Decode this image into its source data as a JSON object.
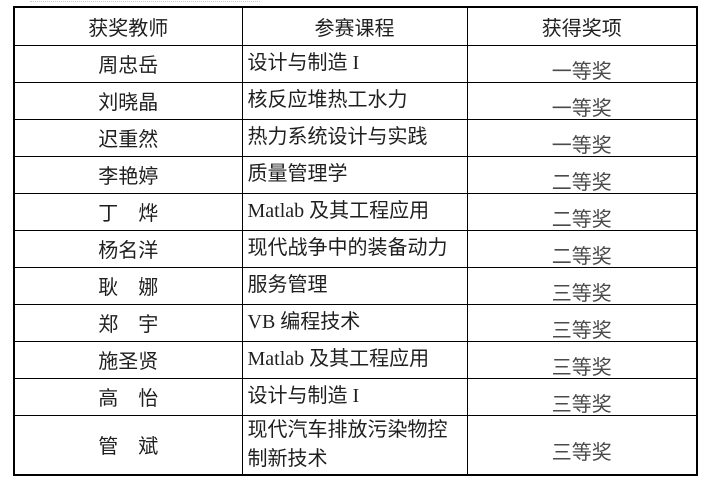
{
  "table": {
    "columns": [
      {
        "key": "teacher",
        "label": "获奖教师"
      },
      {
        "key": "course",
        "label": "参赛课程"
      },
      {
        "key": "award",
        "label": "获得奖项"
      }
    ],
    "rows": [
      {
        "teacher": "周忠岳",
        "course": "设计与制造 I",
        "award": "一等奖"
      },
      {
        "teacher": "刘晓晶",
        "course": "核反应堆热工水力",
        "award": "一等奖"
      },
      {
        "teacher": "迟重然",
        "course": "热力系统设计与实践",
        "award": "一等奖"
      },
      {
        "teacher": "李艳婷",
        "course": "质量管理学",
        "award": "二等奖"
      },
      {
        "teacher": "丁　烨",
        "course": "Matlab 及其工程应用",
        "award": "二等奖"
      },
      {
        "teacher": "杨名洋",
        "course": "现代战争中的装备动力",
        "award": "二等奖"
      },
      {
        "teacher": "耿　娜",
        "course": "服务管理",
        "award": "三等奖"
      },
      {
        "teacher": "郑　宇",
        "course": "VB 编程技术",
        "award": "三等奖"
      },
      {
        "teacher": "施圣贤",
        "course": "Matlab 及其工程应用",
        "award": "三等奖"
      },
      {
        "teacher": "高　怡",
        "course": "设计与制造 I",
        "award": "三等奖"
      },
      {
        "teacher": "管　斌",
        "course": "现代汽车排放污染物控制新技术",
        "award": "三等奖"
      }
    ]
  },
  "colors": {
    "border": "#000000",
    "text": "#1f1f1f",
    "award_text": "#4a4a4a",
    "background": "#ffffff"
  }
}
